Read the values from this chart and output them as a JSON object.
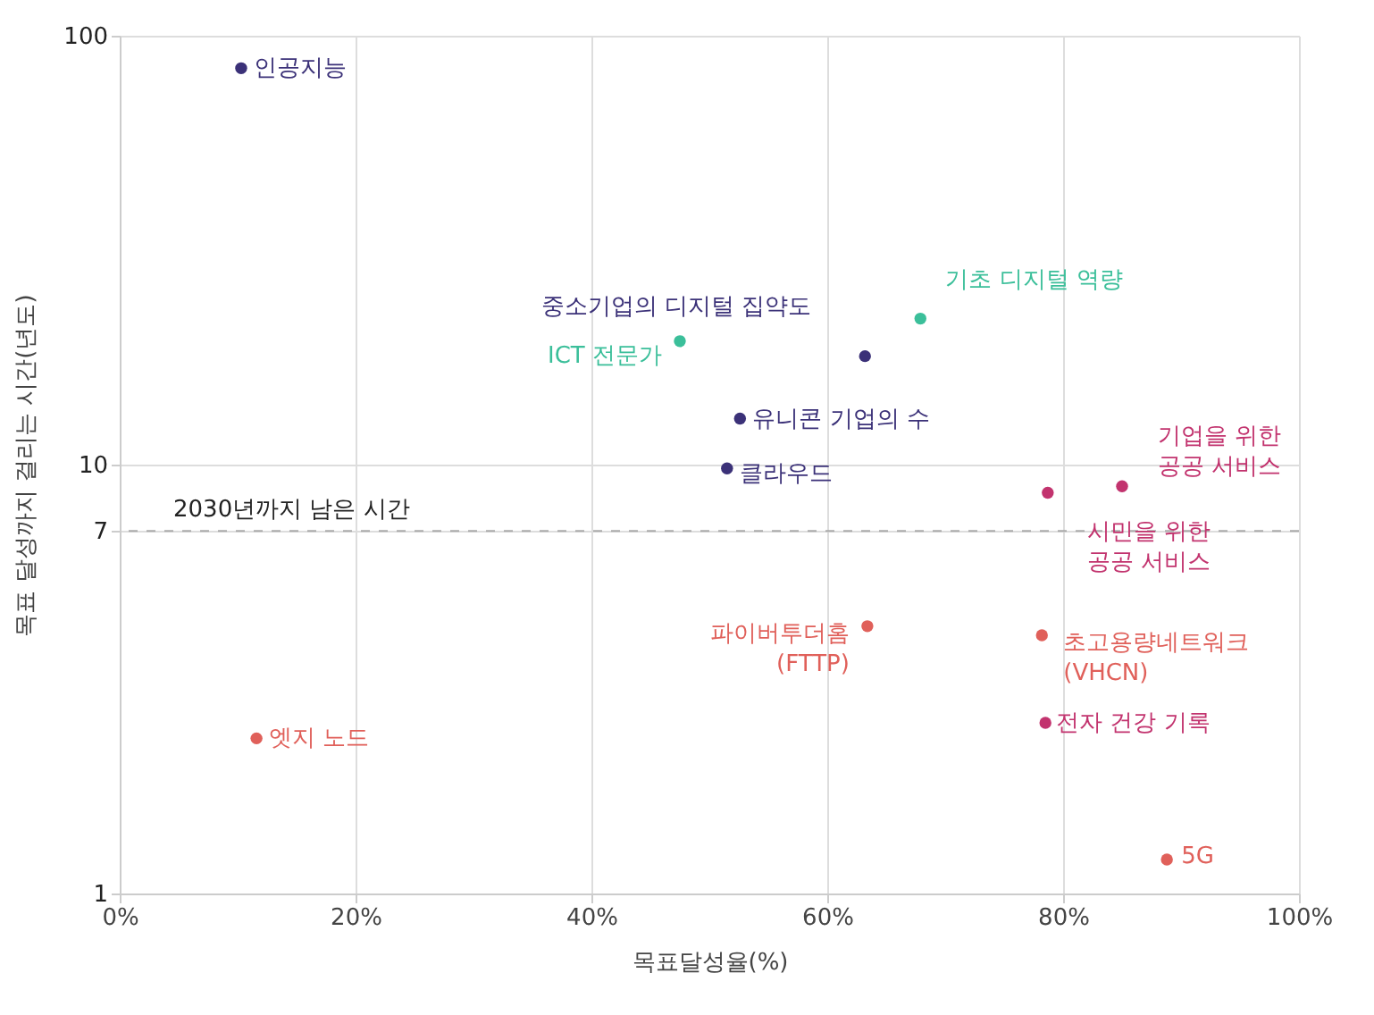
{
  "chart_data": {
    "type": "scatter",
    "xlabel": "목표달성율(%)",
    "ylabel": "목표 달성까지 걸리는 시간(년도)",
    "xlim": [
      0,
      100
    ],
    "xticks": [
      {
        "value": 0,
        "label": "0%"
      },
      {
        "value": 20,
        "label": "20%"
      },
      {
        "value": 40,
        "label": "40%"
      },
      {
        "value": 60,
        "label": "60%"
      },
      {
        "value": 80,
        "label": "80%"
      },
      {
        "value": 100,
        "label": "100%"
      }
    ],
    "ylim": [
      1,
      100
    ],
    "yticks": [
      1,
      7,
      10,
      100
    ],
    "log": "y",
    "grid": true,
    "legend": false,
    "marker": "circle",
    "series": [
      {
        "color": "#3b3178",
        "x": [
          10.3,
          63.2,
          52.6,
          51.5
        ],
        "values": [
          84,
          17.9,
          12.8,
          9.8
        ]
      },
      {
        "color": "#3bbf9a",
        "x": [
          47.5,
          67.9
        ],
        "values": [
          19.4,
          21.9
        ]
      },
      {
        "color": "#c2336e",
        "x": [
          85,
          78.7,
          78.5
        ],
        "values": [
          8.9,
          8.6,
          2.5
        ]
      },
      {
        "color": "#e0605a",
        "x": [
          63.4,
          78.2,
          88.8,
          11.6
        ],
        "values": [
          4.2,
          4.0,
          1.2,
          2.3
        ]
      }
    ],
    "ref_lines": [
      {
        "axis": "y",
        "value": 7,
        "label": "2030년까지 남은 시간",
        "color": "#aaaaaa",
        "line_style": "dashed"
      }
    ],
    "annotations": [
      {
        "text": "인공지능",
        "x": 10.3,
        "y": 84
      },
      {
        "text": "중소기업의 디지털 집약도",
        "x": 63.2,
        "y": 17.9
      },
      {
        "text": "유니콘 기업의 수",
        "x": 52.6,
        "y": 12.8
      },
      {
        "text": "클라우드",
        "x": 51.5,
        "y": 9.8
      },
      {
        "text": "ICT 전문가",
        "x": 47.5,
        "y": 19.4
      },
      {
        "text": "기초 디지털 역량",
        "x": 67.9,
        "y": 21.9
      },
      {
        "text": "기업을 위한\n공공 서비스",
        "x": 85,
        "y": 8.9
      },
      {
        "text": "시민을 위한\n공공 서비스",
        "x": 78.7,
        "y": 8.6
      },
      {
        "text": "전자 건강 기록",
        "x": 78.5,
        "y": 2.5
      },
      {
        "text": "파이버투더홈\n(FTTP)",
        "x": 63.4,
        "y": 4.2
      },
      {
        "text": "초고용량네트워크\n(VHCN)",
        "x": 78.2,
        "y": 4.0
      },
      {
        "text": "5G",
        "x": 88.8,
        "y": 1.2
      },
      {
        "text": "엣지 노드",
        "x": 11.6,
        "y": 2.3
      }
    ]
  }
}
